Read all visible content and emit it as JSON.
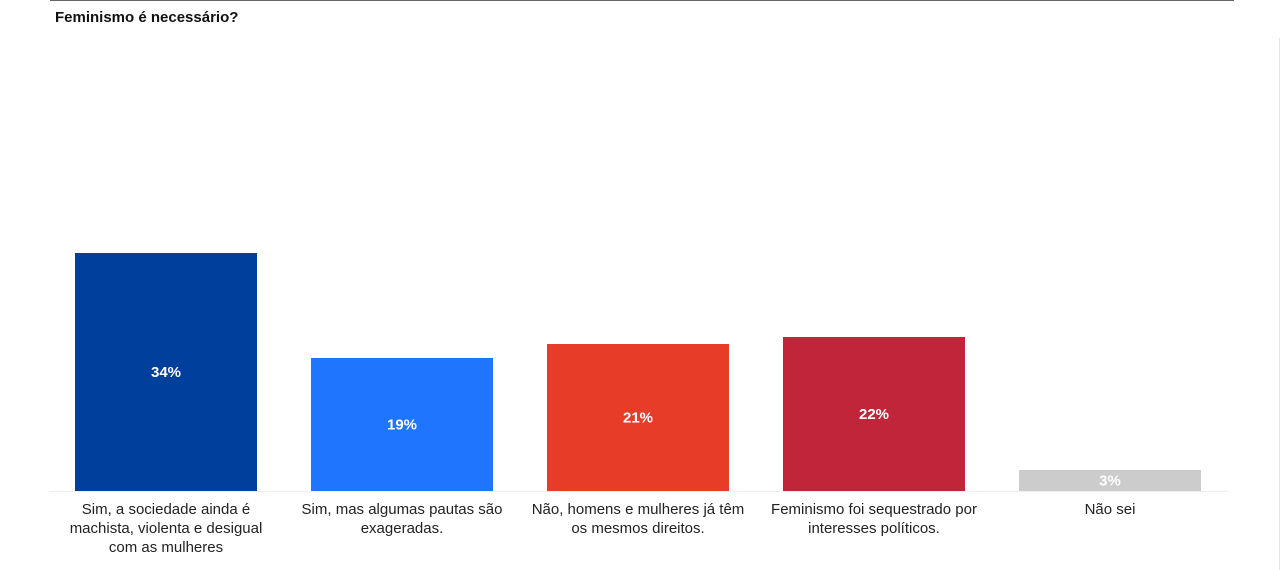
{
  "chart_data": {
    "type": "bar",
    "title": "Feminismo é necessário?",
    "xlabel": "",
    "ylabel": "",
    "grid": false,
    "legend": "none",
    "ylim": [
      0,
      50
    ],
    "categories": [
      [
        "Sim, a sociedade ainda é",
        "machista, violenta e desigual",
        "com as mulheres"
      ],
      [
        "Sim, mas algumas pautas são",
        "exageradas."
      ],
      [
        "Não, homens e mulheres já têm",
        "os mesmos direitos."
      ],
      [
        "Feminismo foi sequestrado por",
        "interesses políticos."
      ],
      [
        "Não sei"
      ]
    ],
    "values": [
      34,
      19,
      21,
      22,
      3
    ],
    "value_labels": [
      "34%",
      "19%",
      "21%",
      "22%",
      "3%"
    ],
    "colors": [
      "#013f9c",
      "#1f75fe",
      "#e63c28",
      "#c1253a",
      "#cccccc"
    ]
  }
}
